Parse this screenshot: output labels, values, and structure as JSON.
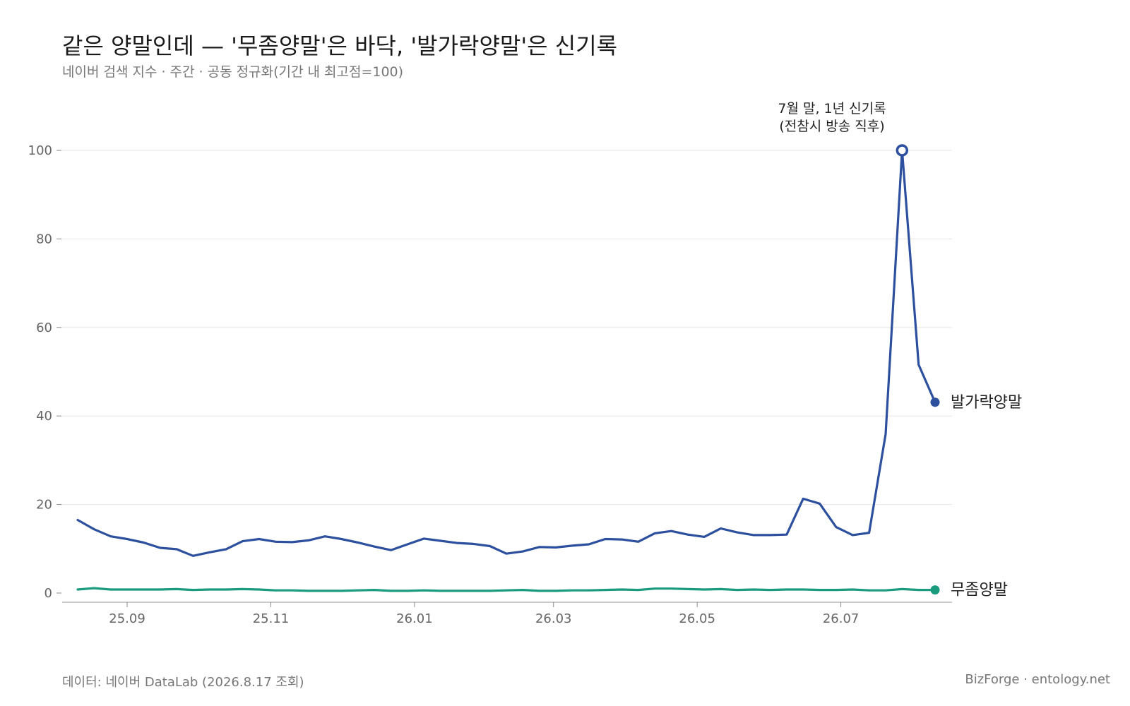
{
  "title": "같은 양말인데 — '무좀양말'은 바닥, '발가락양말'은 신기록",
  "subtitle": "네이버 검색 지수 · 주간 · 공동 정규화(기간 내 최고점=100)",
  "footer_left": "데이터: 네이버 DataLab (2026.8.17 조회)",
  "footer_right": "BizForge · entology.net",
  "chart_data": {
    "type": "line",
    "y_ticks": [
      0,
      20,
      40,
      60,
      80,
      100
    ],
    "ylim": [
      -2,
      110
    ],
    "x_start": "2025-08-11",
    "x_end": "2026-08-10",
    "x_ticks": [
      {
        "date": "2025-09-01",
        "label": "25.09"
      },
      {
        "date": "2025-11-01",
        "label": "25.11"
      },
      {
        "date": "2026-01-01",
        "label": "26.01"
      },
      {
        "date": "2026-03-01",
        "label": "26.03"
      },
      {
        "date": "2026-05-01",
        "label": "26.05"
      },
      {
        "date": "2026-07-01",
        "label": "26.07"
      }
    ],
    "grid": true,
    "series": [
      {
        "name": "발가락양말",
        "color": "#2c4f9e",
        "values": [
          16.5,
          14.4,
          12.8,
          12.2,
          11.4,
          10.2,
          9.9,
          8.4,
          9.2,
          9.9,
          11.7,
          12.2,
          11.6,
          11.5,
          11.9,
          12.8,
          12.2,
          11.4,
          10.5,
          9.7,
          11.0,
          12.3,
          11.8,
          11.3,
          11.1,
          10.6,
          8.9,
          9.4,
          10.4,
          10.3,
          10.7,
          11.0,
          12.2,
          12.1,
          11.6,
          13.5,
          14.0,
          13.2,
          12.7,
          14.6,
          13.7,
          13.1,
          13.1,
          13.2,
          21.3,
          20.2,
          14.9,
          13.1,
          13.6,
          35.9,
          100.0,
          51.6,
          43.1
        ]
      },
      {
        "name": "무좀양말",
        "color": "#1a9b7e",
        "values": [
          0.8,
          1.1,
          0.8,
          0.8,
          0.8,
          0.8,
          0.9,
          0.7,
          0.8,
          0.8,
          0.9,
          0.8,
          0.6,
          0.6,
          0.5,
          0.5,
          0.5,
          0.6,
          0.7,
          0.5,
          0.5,
          0.6,
          0.5,
          0.5,
          0.5,
          0.5,
          0.6,
          0.7,
          0.5,
          0.5,
          0.6,
          0.6,
          0.7,
          0.8,
          0.7,
          1.0,
          1.0,
          0.9,
          0.8,
          0.9,
          0.7,
          0.8,
          0.7,
          0.8,
          0.8,
          0.7,
          0.7,
          0.8,
          0.6,
          0.6,
          0.9,
          0.7,
          0.7
        ]
      }
    ],
    "annotation": {
      "series_index": 0,
      "point_index": 50,
      "lines": [
        "7월 말, 1년 신기록",
        "(전참시 방송 직후)"
      ]
    }
  }
}
